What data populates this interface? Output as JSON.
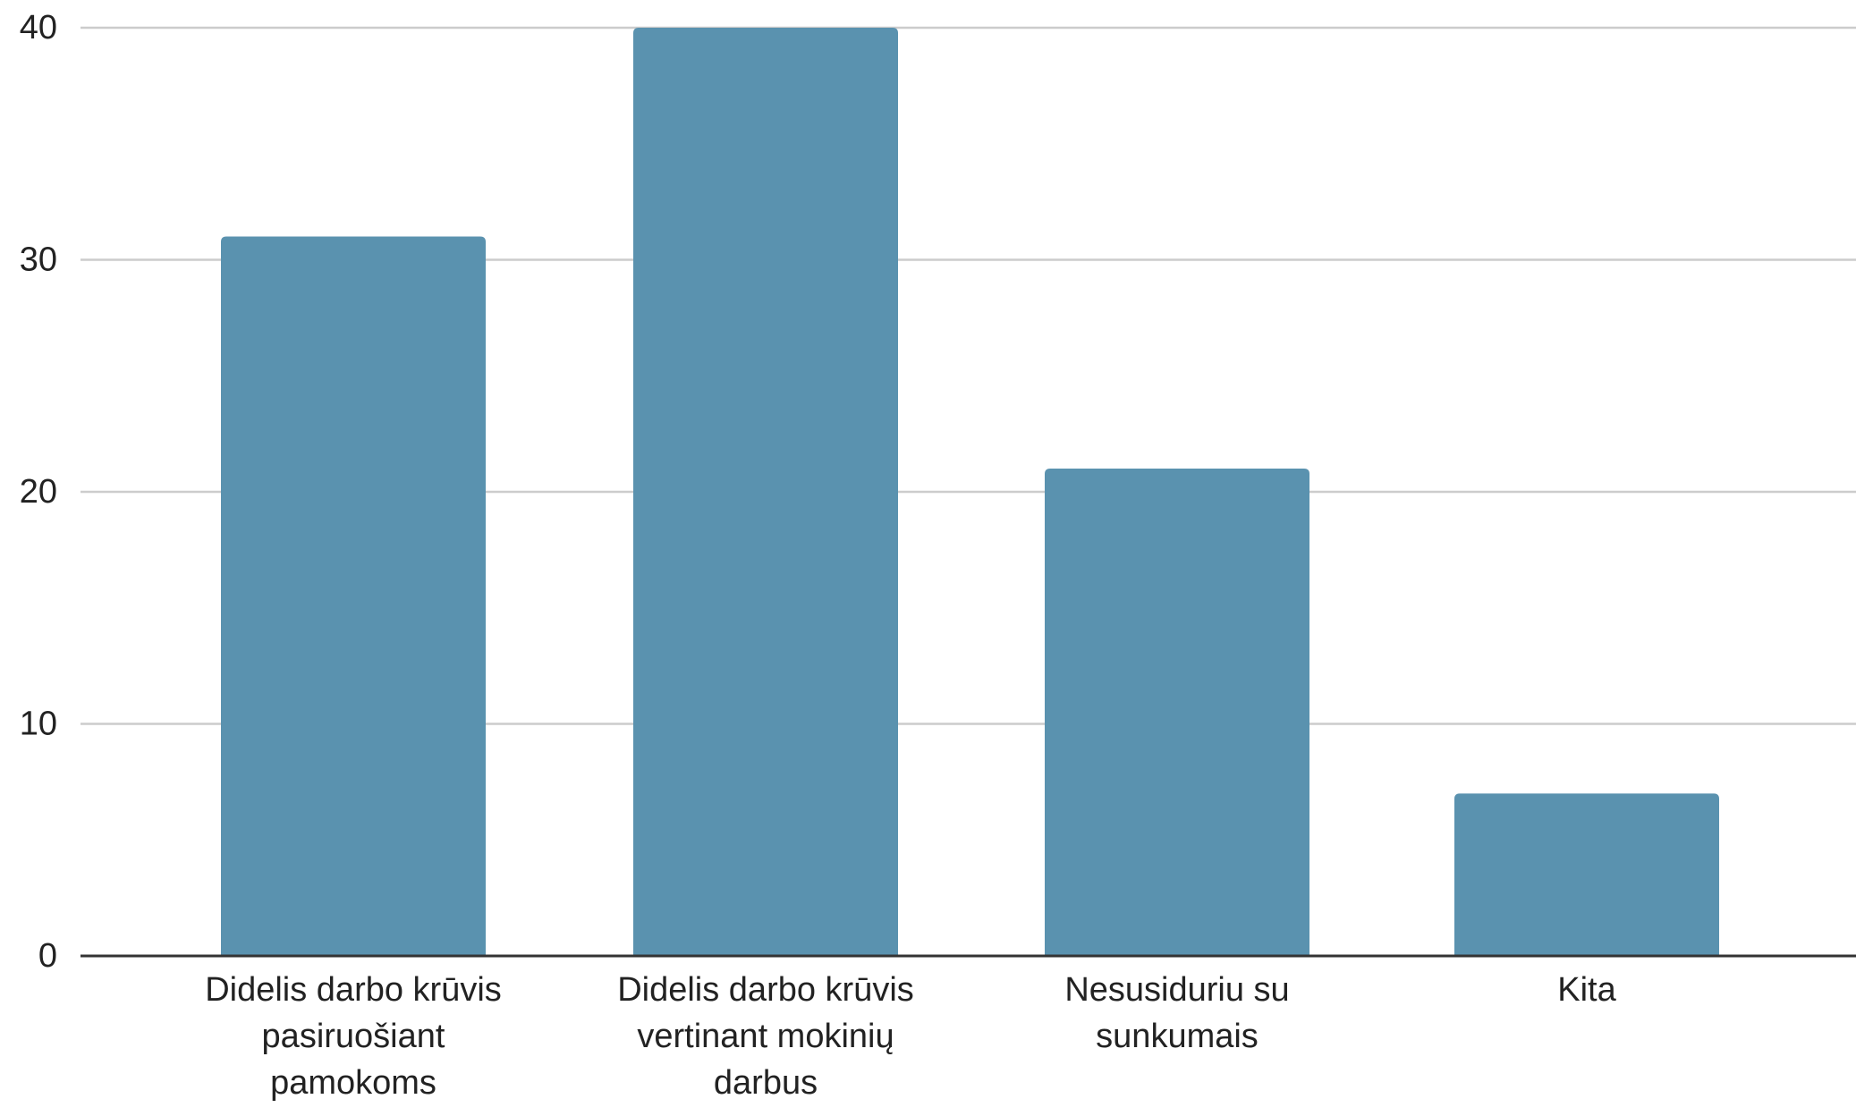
{
  "chart_data": {
    "type": "bar",
    "title": "",
    "xlabel": "",
    "ylabel": "",
    "categories": [
      [
        "Didelis darbo krūvis",
        "pasiruošiant",
        "pamokoms"
      ],
      [
        "Didelis darbo krūvis",
        "vertinant mokinių",
        "darbus"
      ],
      [
        "Nesusiduriu su",
        "sunkumais"
      ],
      [
        "Kita"
      ]
    ],
    "values": [
      31,
      40,
      21,
      7
    ],
    "ylim": [
      0,
      40
    ],
    "yticks": [
      "0",
      "10",
      "20",
      "30",
      "40"
    ],
    "grid": true,
    "legend": "none",
    "colors": {
      "bar": "#5a92af",
      "grid": "#cccccc",
      "baseline": "#333333",
      "text": "#222222"
    }
  }
}
